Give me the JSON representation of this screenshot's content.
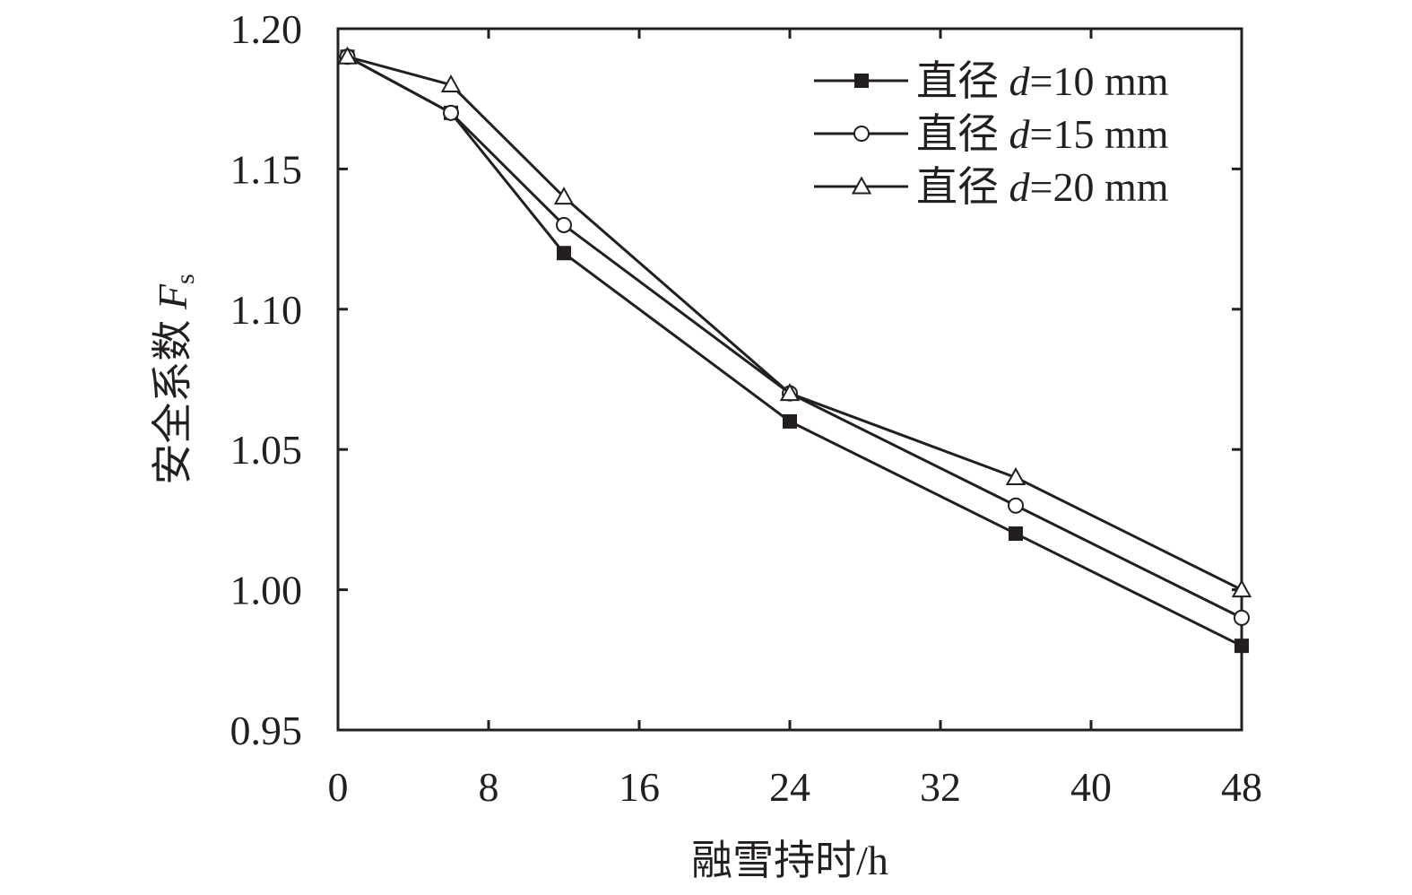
{
  "chart_data": {
    "type": "line",
    "xlabel": "融雪持时/h",
    "ylabel": "安全系数 ",
    "ylabel_italic": "F",
    "ylabel_sub": "s",
    "xlim": [
      0,
      48
    ],
    "ylim": [
      0.95,
      1.2
    ],
    "xticks": [
      0,
      8,
      16,
      24,
      32,
      40,
      48
    ],
    "xtick_labels": [
      "0",
      "8",
      "16",
      "24",
      "32",
      "40",
      "48"
    ],
    "yticks": [
      0.95,
      1.0,
      1.05,
      1.1,
      1.15,
      1.2
    ],
    "ytick_labels": [
      "0.95",
      "1.00",
      "1.05",
      "1.10",
      "1.15",
      "1.20"
    ],
    "grid": false,
    "legend_position": "top-right",
    "x": [
      0.5,
      6,
      12,
      24,
      36,
      48
    ],
    "series": [
      {
        "name": "直径 d=10 mm",
        "name_prefix": "直径 ",
        "name_italic": "d",
        "name_suffix": "=10 mm",
        "marker": "filled-square",
        "values": [
          1.19,
          1.17,
          1.12,
          1.06,
          1.02,
          0.98
        ]
      },
      {
        "name": "直径 d=15 mm",
        "name_prefix": "直径 ",
        "name_italic": "d",
        "name_suffix": "=15 mm",
        "marker": "open-circle",
        "values": [
          1.19,
          1.17,
          1.13,
          1.07,
          1.03,
          0.99
        ]
      },
      {
        "name": "直径 d=20 mm",
        "name_prefix": "直径 ",
        "name_italic": "d",
        "name_suffix": "=20 mm",
        "marker": "open-triangle",
        "values": [
          1.19,
          1.18,
          1.14,
          1.07,
          1.04,
          1.0
        ]
      }
    ],
    "colors": {
      "ink": "#231f20",
      "background": "#ffffff"
    }
  }
}
